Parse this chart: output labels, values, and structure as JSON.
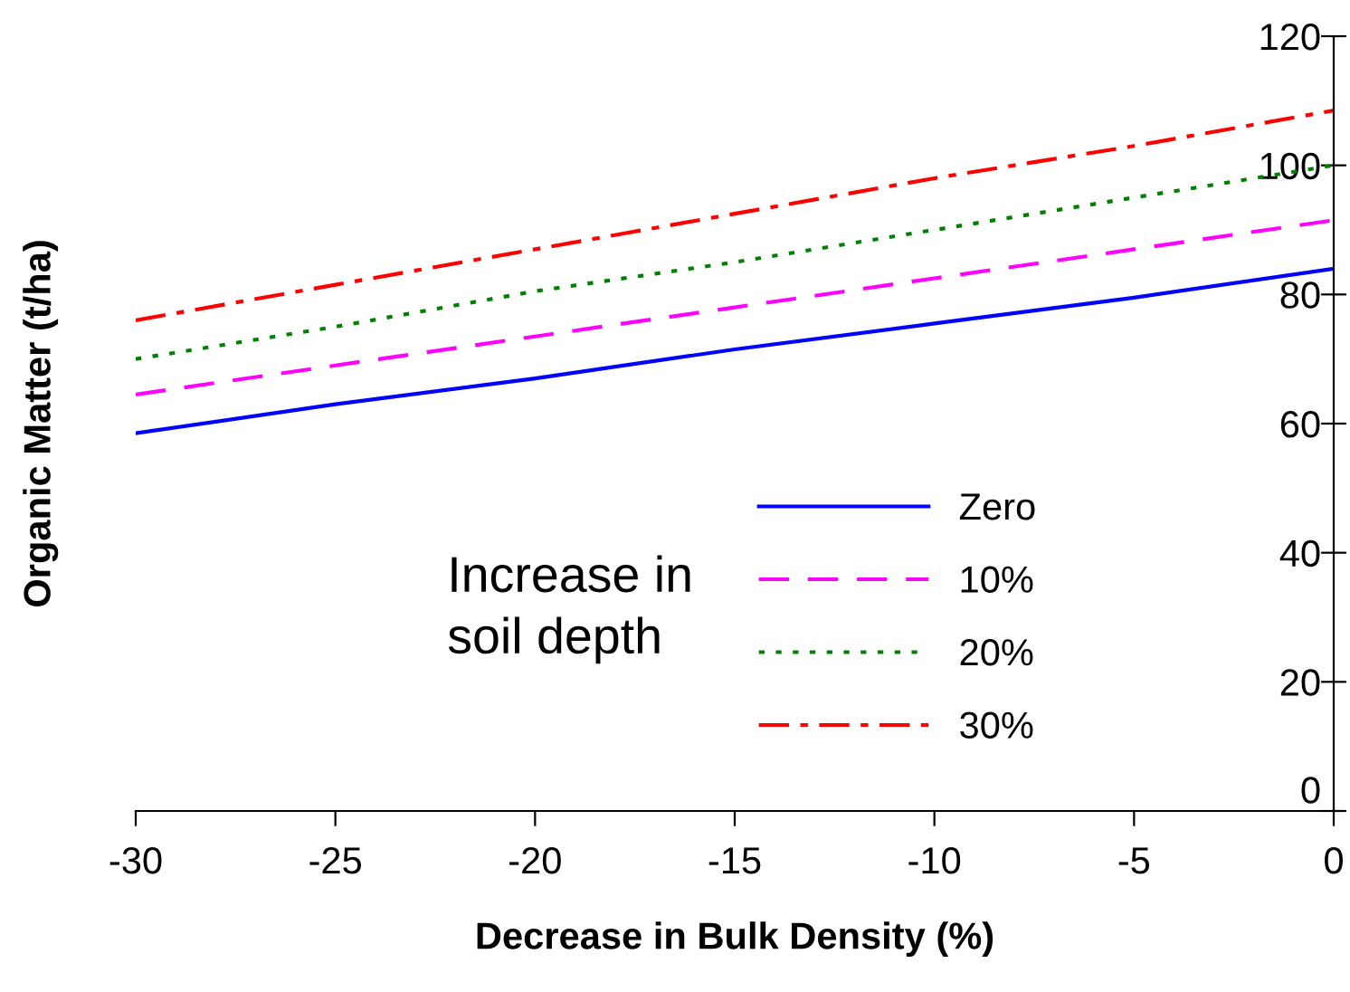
{
  "chart_data": {
    "type": "line",
    "xlabel": "Decrease in Bulk Density (%)",
    "ylabel": "Organic Matter (t/ha)",
    "legend_title": "Increase in\nsoil depth",
    "x": [
      -30,
      -25,
      -20,
      -15,
      -10,
      -5,
      0
    ],
    "series": [
      {
        "name": "Zero",
        "color": "#0000ff",
        "line_style": "solid",
        "values": [
          58.5,
          63,
          67,
          71.5,
          75.5,
          79.5,
          84
        ]
      },
      {
        "name": "10%",
        "color": "#ff00ff",
        "line_style": "dashed",
        "values": [
          64.5,
          69,
          73.5,
          78,
          82.5,
          87,
          91.5
        ]
      },
      {
        "name": "20%",
        "color": "#008000",
        "line_style": "dotted",
        "values": [
          70,
          75,
          80.5,
          85,
          90,
          95,
          100
        ]
      },
      {
        "name": "30%",
        "color": "#ff0000",
        "line_style": "dashdot",
        "values": [
          76,
          81.5,
          87,
          92.5,
          98,
          103,
          108.5
        ]
      }
    ],
    "xlim": [
      -30,
      0
    ],
    "xticks": [
      -30,
      -25,
      -20,
      -15,
      -10,
      -5,
      0
    ],
    "ylim": [
      0,
      120
    ],
    "yticks": [
      0,
      20,
      40,
      60,
      80,
      100,
      120
    ],
    "grid": false,
    "legend": "bottom",
    "marker": "none"
  }
}
